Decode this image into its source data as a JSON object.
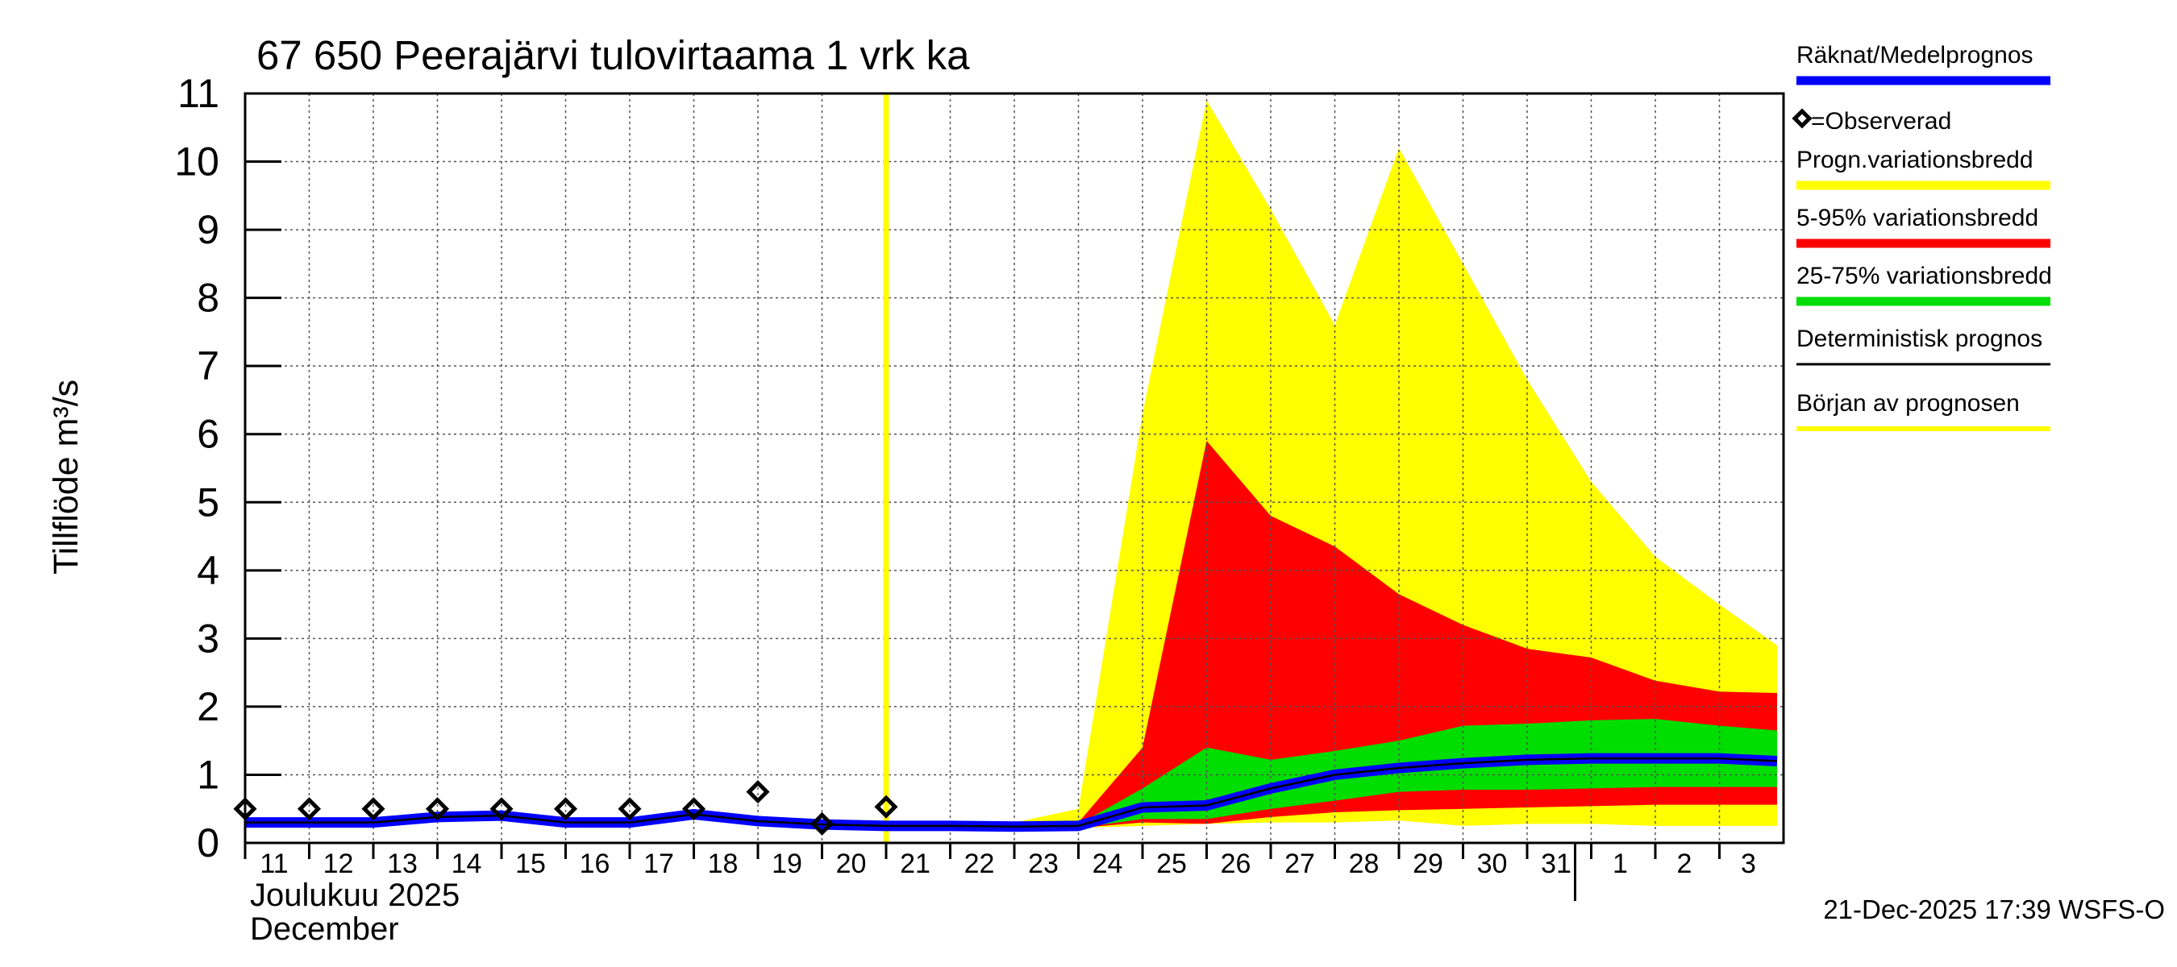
{
  "chart_data": {
    "type": "area",
    "title": "67 650 Peerajärvi tulovirtaama 1 vrk ka",
    "ylabel": "Tillflöde m³/s",
    "xlabel_line1": "Joulukuu  2025",
    "xlabel_line2": "December",
    "footer": "21-Dec-2025 17:39 WSFS-O",
    "ylim": [
      0,
      11
    ],
    "yticks": [
      "0",
      "1",
      "2",
      "3",
      "4",
      "5",
      "6",
      "7",
      "8",
      "9",
      "10",
      "11"
    ],
    "x_labels": [
      "11",
      "12",
      "13",
      "14",
      "15",
      "16",
      "17",
      "18",
      "19",
      "20",
      "21",
      "22",
      "23",
      "24",
      "25",
      "26",
      "27",
      "28",
      "29",
      "30",
      "31",
      "1",
      "2",
      "3"
    ],
    "forecast_start_day": "21",
    "legend": [
      {
        "label": "Räknat/Medelprognos",
        "color": "#0000ff"
      },
      {
        "label": "=Observerad",
        "color": "#000000"
      },
      {
        "label": "Progn.variationsbredd",
        "color": "#ffff00"
      },
      {
        "label": "5-95% variationsbredd",
        "color": "#ff0000"
      },
      {
        "label": "25-75% variationsbredd",
        "color": "#00dd00"
      },
      {
        "label": "Deterministisk prognos",
        "color": "#000000"
      },
      {
        "label": "Början av prognosen",
        "color": "#ffff00"
      }
    ],
    "series": [
      {
        "name": "Räknat/Medelprognos",
        "x": [
          "11",
          "12",
          "13",
          "14",
          "15",
          "16",
          "17",
          "18",
          "19",
          "20",
          "21",
          "22",
          "23",
          "24",
          "25",
          "26",
          "27",
          "28",
          "29",
          "30",
          "31",
          "1",
          "2",
          "3",
          "3+"
        ],
        "values": [
          0.3,
          0.3,
          0.3,
          0.38,
          0.4,
          0.3,
          0.3,
          0.42,
          0.32,
          0.27,
          0.25,
          0.25,
          0.24,
          0.25,
          0.52,
          0.55,
          0.8,
          1.0,
          1.1,
          1.17,
          1.22,
          1.24,
          1.24,
          1.24,
          1.2
        ]
      },
      {
        "name": "=Observerad",
        "x": [
          "11",
          "12",
          "13",
          "14",
          "15",
          "16",
          "17",
          "18",
          "19",
          "20",
          "21"
        ],
        "values": [
          0.5,
          0.5,
          0.5,
          0.5,
          0.5,
          0.5,
          0.5,
          0.5,
          0.75,
          0.28,
          0.53
        ]
      },
      {
        "name": "Progn.variationsbredd",
        "x": [
          "21",
          "22",
          "23",
          "24",
          "25",
          "26",
          "27",
          "28",
          "29",
          "30",
          "31",
          "1",
          "2",
          "3",
          "3+"
        ],
        "lower": [
          0.25,
          0.25,
          0.22,
          0.22,
          0.25,
          0.28,
          0.3,
          0.3,
          0.33,
          0.25,
          0.28,
          0.28,
          0.25,
          0.25,
          0.25
        ],
        "upper": [
          0.25,
          0.25,
          0.3,
          0.5,
          6.3,
          10.9,
          9.3,
          7.6,
          10.2,
          8.5,
          6.8,
          5.3,
          4.2,
          3.5,
          2.9
        ]
      },
      {
        "name": "5-95% variationsbredd",
        "x": [
          "21",
          "22",
          "23",
          "24",
          "25",
          "26",
          "27",
          "28",
          "29",
          "30",
          "31",
          "1",
          "2",
          "3",
          "3+"
        ],
        "lower": [
          0.25,
          0.25,
          0.22,
          0.22,
          0.3,
          0.28,
          0.38,
          0.45,
          0.48,
          0.5,
          0.52,
          0.54,
          0.56,
          0.56,
          0.56
        ],
        "upper": [
          0.25,
          0.25,
          0.25,
          0.3,
          1.4,
          5.9,
          4.8,
          4.35,
          3.65,
          3.2,
          2.85,
          2.72,
          2.38,
          2.22,
          2.2
        ]
      },
      {
        "name": "25-75% variationsbredd",
        "x": [
          "21",
          "22",
          "23",
          "24",
          "25",
          "26",
          "27",
          "28",
          "29",
          "30",
          "31",
          "1",
          "2",
          "3",
          "3+"
        ],
        "lower": [
          0.25,
          0.25,
          0.22,
          0.22,
          0.35,
          0.35,
          0.5,
          0.62,
          0.75,
          0.78,
          0.78,
          0.8,
          0.82,
          0.82,
          0.82
        ],
        "upper": [
          0.25,
          0.25,
          0.25,
          0.27,
          0.8,
          1.4,
          1.22,
          1.35,
          1.5,
          1.72,
          1.75,
          1.8,
          1.82,
          1.72,
          1.65
        ]
      }
    ]
  }
}
